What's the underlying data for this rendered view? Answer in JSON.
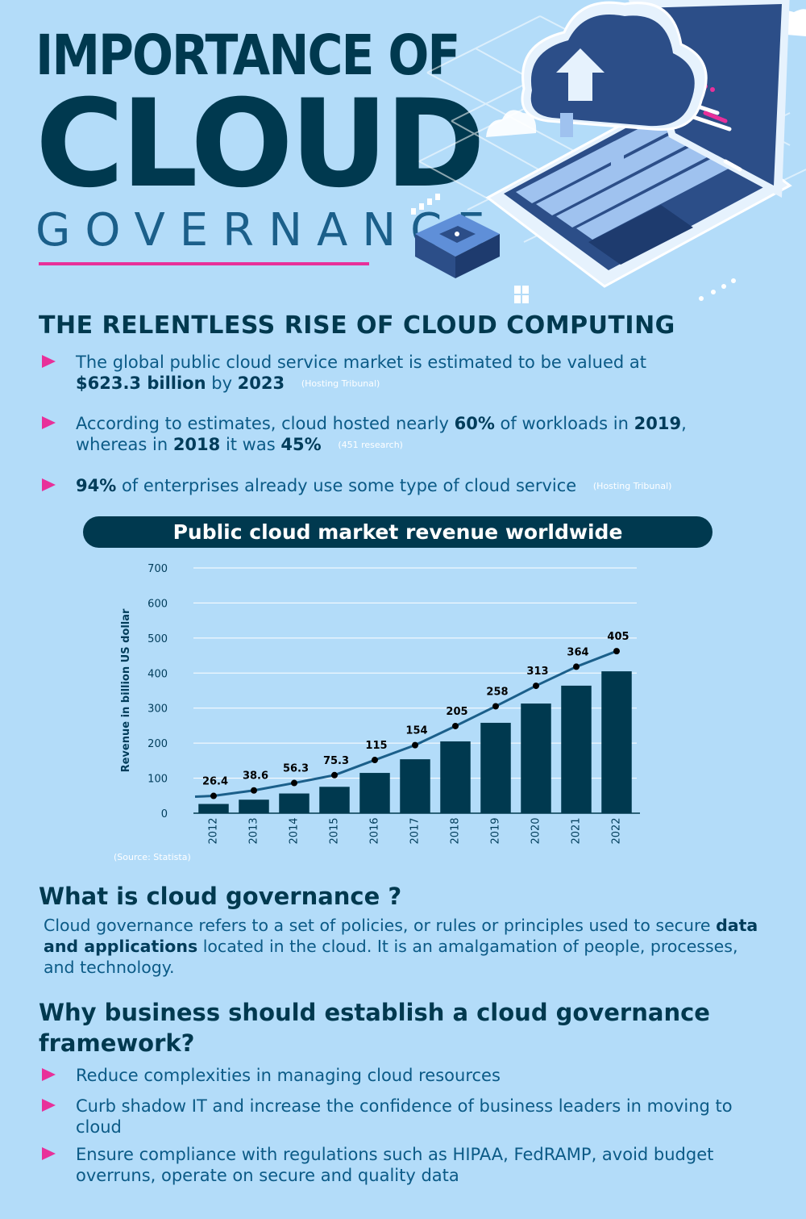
{
  "title": {
    "line1": "IMPORTANCE OF",
    "line2": "CLOUD",
    "line3": "GOVERNANCE"
  },
  "section1": {
    "heading": "THE RELENTLESS RISE OF CLOUD COMPUTING",
    "bullets": [
      {
        "t1": "The global public cloud service market is estimated to be valued at",
        "b1": "$623.3 billion",
        "t2": " by ",
        "b2": "2023",
        "source": "(Hosting Tribunal)"
      },
      {
        "t1": "According to estimates, cloud hosted nearly ",
        "b1": "60%",
        "t2": " of workloads in ",
        "b2": "2019",
        "t3": ",",
        "t4": "whereas in ",
        "b3": "2018",
        "t5": " it was ",
        "b4": "45%",
        "source": "(451 research)"
      },
      {
        "b1": "94%",
        "t1": " of enterprises already use some type of cloud service",
        "source": "(Hosting Tribunal)"
      }
    ]
  },
  "chart_data": {
    "type": "bar",
    "title": "Public cloud market revenue worldwide",
    "ylabel": "Revenue in billion US dollar",
    "xlabel": "",
    "categories": [
      "2012",
      "2013",
      "2014",
      "2015",
      "2016",
      "2017",
      "2018",
      "2019",
      "2020",
      "2021",
      "2022"
    ],
    "values": [
      26.4,
      38.6,
      56.3,
      75.3,
      115,
      154,
      205,
      258,
      313,
      364,
      405
    ],
    "value_labels": [
      "26.4",
      "38.6",
      "56.3",
      "75.3",
      "115",
      "154",
      "205",
      "258",
      "313",
      "364",
      "405"
    ],
    "yticks": [
      "0",
      "100",
      "200",
      "300",
      "400",
      "500",
      "600",
      "700"
    ],
    "ylim": [
      0,
      700
    ],
    "grid": true,
    "trend_line": true,
    "source": "(Source: Statista)",
    "colors": {
      "bar": "#00394f",
      "line": "#1b5f8a",
      "pill": "#00394f"
    }
  },
  "section2": {
    "heading": "What is cloud governance ?",
    "p1": "Cloud governance refers to a set of policies, or rules or principles used to secure ",
    "p_bold": "data and applications",
    "p2": " located in the cloud. It is an amalgamation of people, processes, and technology."
  },
  "section3": {
    "heading": "Why business should establish a cloud governance framework?",
    "bullets": [
      "Reduce complexities in managing cloud resources",
      "Curb shadow IT and increase the confidence of business leaders in moving to cloud",
      "Ensure compliance with regulations such as HIPAA, FedRAMP, avoid budget overruns, operate on secure and quality data"
    ]
  },
  "colors": {
    "background": "#b3dcf9",
    "dark": "#00394f",
    "accent": "#e8309a",
    "text": "#0b5a86"
  }
}
